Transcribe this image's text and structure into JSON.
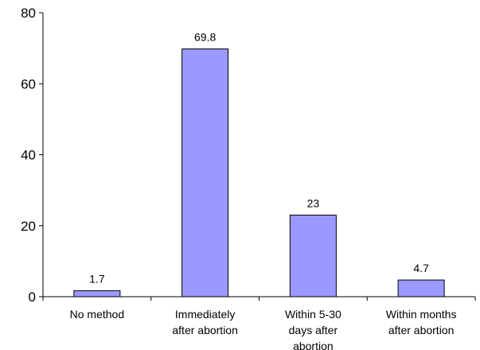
{
  "chart_data": {
    "type": "bar",
    "categories": [
      [
        "No method"
      ],
      [
        "Immediately",
        "after abortion"
      ],
      [
        "Within 5-30",
        "days after",
        "abortion"
      ],
      [
        "Within months",
        "after abortion"
      ]
    ],
    "values": [
      1.7,
      69.8,
      23,
      4.7
    ],
    "data_labels": [
      "1.7",
      "69.8",
      "23",
      "4.7"
    ],
    "ylim": [
      0,
      80
    ],
    "yticks": [
      0,
      20,
      40,
      60,
      80
    ],
    "bar_color": "#9999ff",
    "bar_stroke": "#000000",
    "grid": false,
    "legend": "none"
  }
}
